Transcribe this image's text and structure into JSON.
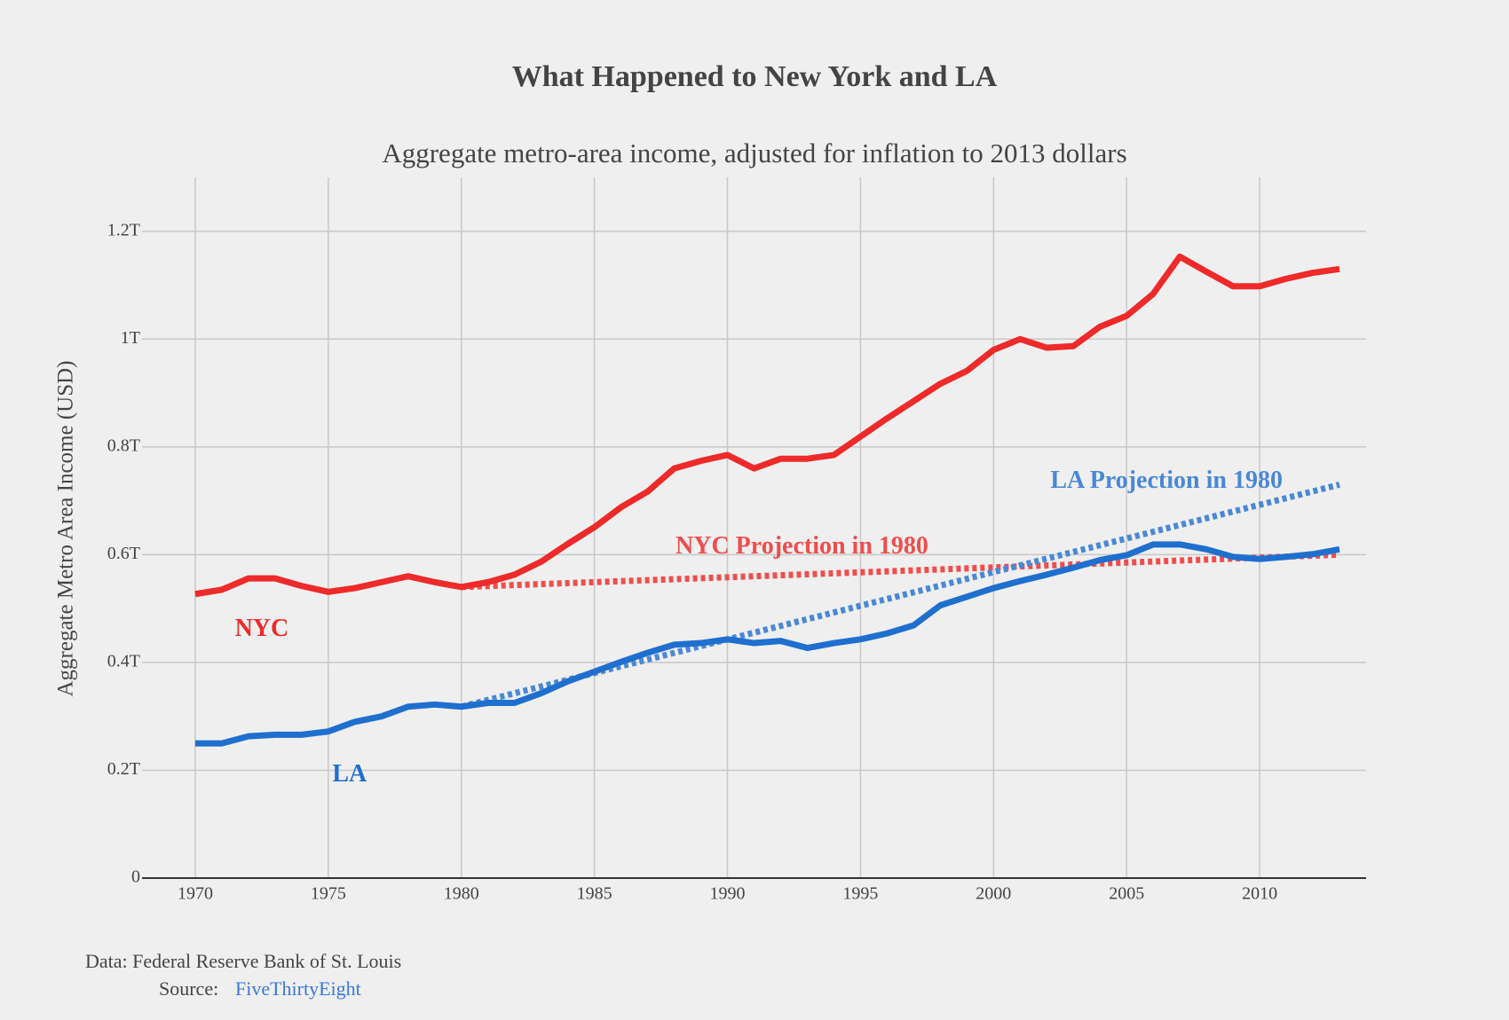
{
  "chart_data": {
    "type": "line",
    "title": "What Happened to New York and LA",
    "subtitle": "Aggregate metro-area income, adjusted for inflation to 2013 dollars",
    "y_label": "Aggregate Metro Area Income (USD)",
    "xlim": [
      1968,
      2014
    ],
    "ylim": [
      0,
      1.3
    ],
    "xticks": [
      1970,
      1975,
      1980,
      1985,
      1990,
      1995,
      2000,
      2005,
      2010
    ],
    "yticks": [
      0,
      {
        "value": 0.2,
        "label": "0.2T"
      },
      {
        "value": 0.4,
        "label": "0.4T"
      },
      {
        "value": 0.6,
        "label": "0.6T"
      },
      {
        "value": 0.8,
        "label": "0.8T"
      },
      {
        "value": 1,
        "label": "1T"
      },
      {
        "value": 1.2,
        "label": "1.2T"
      }
    ],
    "grid": true,
    "series": [
      {
        "name": "NYC",
        "color": "#ee2a2a",
        "dash": false,
        "x": [
          1970,
          1971,
          1972,
          1973,
          1974,
          1975,
          1976,
          1977,
          1978,
          1979,
          1980,
          1981,
          1982,
          1983,
          1984,
          1985,
          1986,
          1987,
          1988,
          1989,
          1990,
          1991,
          1992,
          1993,
          1994,
          1995,
          1996,
          1997,
          1998,
          1999,
          2000,
          2001,
          2002,
          2003,
          2004,
          2005,
          2006,
          2007,
          2008,
          2009,
          2010,
          2011,
          2012,
          2013
        ],
        "values": [
          0.527,
          0.535,
          0.556,
          0.556,
          0.542,
          0.531,
          0.538,
          0.549,
          0.56,
          0.549,
          0.54,
          0.549,
          0.563,
          0.587,
          0.62,
          0.651,
          0.688,
          0.717,
          0.76,
          0.774,
          0.785,
          0.76,
          0.778,
          0.778,
          0.785,
          0.819,
          0.853,
          0.885,
          0.917,
          0.941,
          0.98,
          1.0,
          0.984,
          0.987,
          1.023,
          1.043,
          1.084,
          1.153,
          1.125,
          1.098,
          1.098,
          1.112,
          1.123,
          1.13
        ]
      },
      {
        "name": "LA",
        "color": "#1f6fcf",
        "dash": false,
        "x": [
          1970,
          1971,
          1972,
          1973,
          1974,
          1975,
          1976,
          1977,
          1978,
          1979,
          1980,
          1981,
          1982,
          1983,
          1984,
          1985,
          1986,
          1987,
          1988,
          1989,
          1990,
          1991,
          1992,
          1993,
          1994,
          1995,
          1996,
          1997,
          1998,
          1999,
          2000,
          2001,
          2002,
          2003,
          2004,
          2005,
          2006,
          2007,
          2008,
          2009,
          2010,
          2011,
          2012,
          2013
        ],
        "values": [
          0.25,
          0.25,
          0.263,
          0.266,
          0.266,
          0.272,
          0.29,
          0.3,
          0.318,
          0.322,
          0.318,
          0.325,
          0.325,
          0.343,
          0.365,
          0.383,
          0.401,
          0.418,
          0.433,
          0.436,
          0.443,
          0.436,
          0.44,
          0.427,
          0.436,
          0.443,
          0.454,
          0.469,
          0.506,
          0.522,
          0.538,
          0.551,
          0.563,
          0.576,
          0.59,
          0.599,
          0.619,
          0.619,
          0.61,
          0.596,
          0.592,
          0.596,
          0.601,
          0.61
        ]
      },
      {
        "name": "NYC Projection in 1980",
        "color": "#f04d4d",
        "dash": true,
        "x": [
          1980,
          2013
        ],
        "values": [
          0.54,
          0.6
        ]
      },
      {
        "name": "LA Projection in 1980",
        "color": "#4a88d6",
        "dash": true,
        "x": [
          1980,
          2013
        ],
        "values": [
          0.318,
          0.73
        ]
      }
    ]
  },
  "footer": {
    "data_note": "Data: Federal Reserve Bank of St. Louis",
    "source_label": "Source:",
    "source_link": "FiveThirtyEight"
  }
}
